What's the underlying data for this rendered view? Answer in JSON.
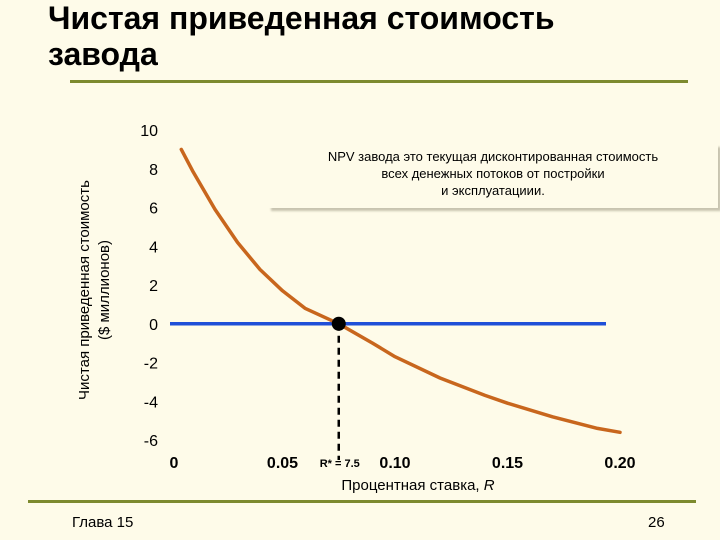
{
  "slide": {
    "title": "Чистая приведенная стоимость завода",
    "footer_left": "Глава 15",
    "page_number": "26",
    "accent_color": "#7d8a2e",
    "background_color": "#fefbe9"
  },
  "annotation": {
    "lines": [
      "NPV завода это текущая дисконтированная стоимость",
      "всех денежных потоков от постройки",
      "и эксплуатациии."
    ]
  },
  "chart_data": {
    "type": "line",
    "title": "",
    "ylabel_line1": "Чистая приведенная стоимость",
    "ylabel_line2": "($ миллионов)",
    "xlabel_text": "Процентная ставка, ",
    "xlabel_var": "R",
    "ylim": [
      -6,
      10
    ],
    "xlim": [
      0,
      0.2
    ],
    "y_ticks": [
      {
        "value": 10,
        "label": "10"
      },
      {
        "value": 8,
        "label": "8"
      },
      {
        "value": 6,
        "label": "6"
      },
      {
        "value": 4,
        "label": "4"
      },
      {
        "value": 2,
        "label": "2"
      },
      {
        "value": 0,
        "label": "0"
      },
      {
        "value": -2,
        "label": "-2"
      },
      {
        "value": -4,
        "label": "-4"
      },
      {
        "value": -6,
        "label": "-6"
      }
    ],
    "x_ticks": [
      {
        "value": 0,
        "label": "0"
      },
      {
        "value": 0.05,
        "label": "0.05"
      },
      {
        "value": 0.1,
        "label": "0.10"
      },
      {
        "value": 0.15,
        "label": "0.15"
      },
      {
        "value": 0.2,
        "label": "0.20"
      }
    ],
    "series": [
      {
        "color": "#c8661d",
        "x": [
          0.005,
          0.01,
          0.02,
          0.03,
          0.04,
          0.05,
          0.06,
          0.075,
          0.09,
          0.1,
          0.12,
          0.14,
          0.15,
          0.17,
          0.19,
          0.2
        ],
        "y": [
          9.0,
          7.9,
          5.9,
          4.2,
          2.8,
          1.7,
          0.8,
          0.0,
          -1.0,
          -1.7,
          -2.8,
          -3.7,
          -4.1,
          -4.8,
          -5.4,
          -5.6
        ]
      }
    ],
    "zero_line": {
      "value": 0,
      "x_end": 0.2,
      "color": "#1f4fd8"
    },
    "marker": {
      "x": 0.075,
      "y": 0,
      "label": "R* = 7.5"
    }
  }
}
